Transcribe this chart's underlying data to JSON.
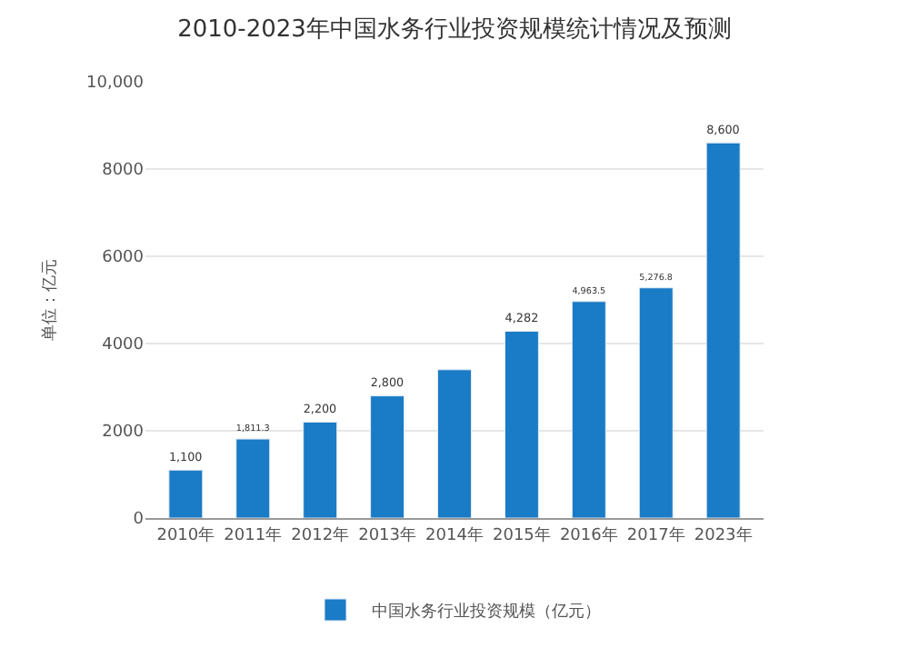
{
  "chart_data": {
    "type": "bar",
    "title": "2010-2023年中国水务行业投资规模统计情况及预测",
    "ylabel": "单位：亿元",
    "categories": [
      "2010年",
      "2011年",
      "2012年",
      "2013年",
      "2014年",
      "2015年",
      "2016年",
      "2017年",
      "2023年"
    ],
    "series": [
      {
        "name": "中国水务行业投资规模（亿元）",
        "color": "#1a7bc6",
        "values": [
          1100,
          1811.3,
          2200,
          2800,
          3400,
          4282,
          4963.5,
          5276.8,
          8600
        ],
        "value_labels": [
          "1,100",
          "1,811.3",
          "2,200",
          "2,800",
          null,
          "4,282",
          "4,963.5",
          "5,276.8",
          "8,600"
        ]
      }
    ],
    "ylim": [
      0,
      10000
    ],
    "yticks": [
      0,
      2000,
      4000,
      6000,
      8000,
      {
        "value": 10000,
        "label": "10,000"
      }
    ],
    "grid": "y",
    "legend": "bottom"
  }
}
